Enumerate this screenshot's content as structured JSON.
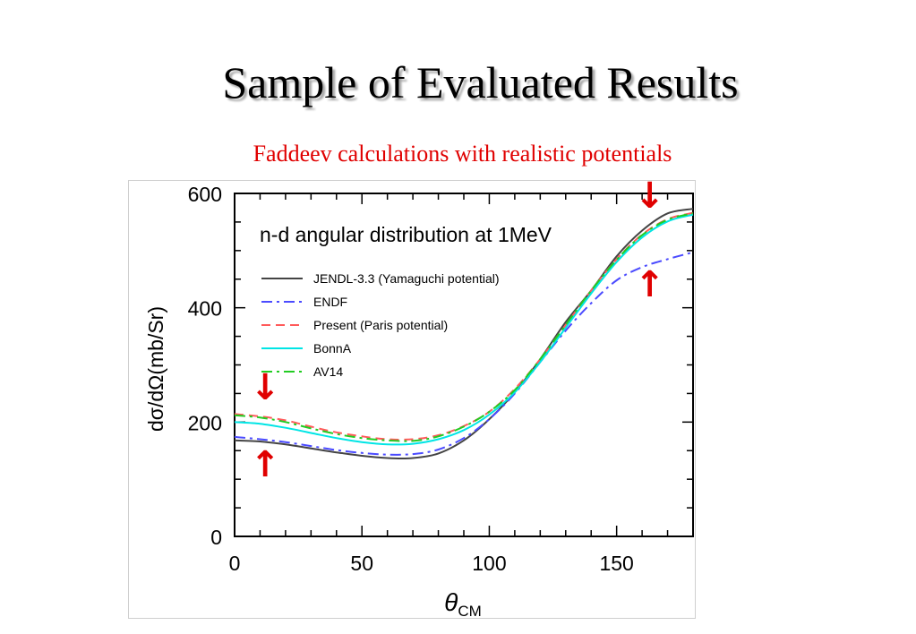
{
  "slide": {
    "title": "Sample of Evaluated Results",
    "subtitle": "Faddeev calculations with realistic potentials"
  },
  "chart_data": {
    "type": "line",
    "title": "n-d angular distribution at 1MeV",
    "xlabel_symbol": "θ",
    "xlabel_subscript": "CM",
    "ylabel": "dσ/dΩ(mb/Sr)",
    "xlim": [
      0,
      180
    ],
    "ylim": [
      0,
      600
    ],
    "x_ticks": [
      0,
      50,
      100,
      150
    ],
    "y_ticks": [
      0,
      200,
      400,
      600
    ],
    "grid": false,
    "legend_position": "upper-left",
    "x": [
      0,
      10,
      20,
      30,
      40,
      50,
      60,
      70,
      80,
      90,
      100,
      110,
      120,
      130,
      140,
      150,
      160,
      170,
      180
    ],
    "series": [
      {
        "name": "JENDL-3.3 (Yamaguchi potential)",
        "color": "#444444",
        "dash": "solid",
        "values": [
          168,
          166,
          161,
          154,
          147,
          141,
          137,
          137,
          145,
          168,
          205,
          252,
          310,
          375,
          430,
          490,
          535,
          565,
          573
        ]
      },
      {
        "name": "ENDF",
        "color": "#4b4bff",
        "dash": "dashdot",
        "values": [
          174,
          170,
          165,
          158,
          151,
          146,
          143,
          144,
          152,
          172,
          205,
          250,
          305,
          360,
          408,
          448,
          471,
          485,
          497
        ]
      },
      {
        "name": "Present (Paris potential)",
        "color": "#ff5a5a",
        "dash": "dashed",
        "values": [
          214,
          210,
          203,
          192,
          182,
          175,
          170,
          170,
          177,
          193,
          218,
          258,
          310,
          370,
          430,
          485,
          528,
          555,
          566
        ]
      },
      {
        "name": "BonnA",
        "color": "#00e5e5",
        "dash": "solid",
        "values": [
          200,
          197,
          190,
          181,
          172,
          165,
          161,
          162,
          170,
          186,
          213,
          252,
          305,
          365,
          425,
          480,
          523,
          551,
          563
        ]
      },
      {
        "name": "AV14",
        "color": "#22cc22",
        "dash": "dashdot",
        "values": [
          212,
          208,
          200,
          189,
          179,
          172,
          168,
          167,
          175,
          192,
          218,
          256,
          310,
          370,
          430,
          484,
          527,
          554,
          565
        ]
      }
    ],
    "annotations": [
      {
        "text": "↓",
        "x": 12,
        "y": 240,
        "color": "#e00000"
      },
      {
        "text": "↑",
        "x": 12,
        "y": 105,
        "color": "#e00000"
      },
      {
        "text": "↓",
        "x": 163,
        "y": 575,
        "color": "#e00000"
      },
      {
        "text": "↑",
        "x": 163,
        "y": 420,
        "color": "#e00000"
      }
    ]
  }
}
